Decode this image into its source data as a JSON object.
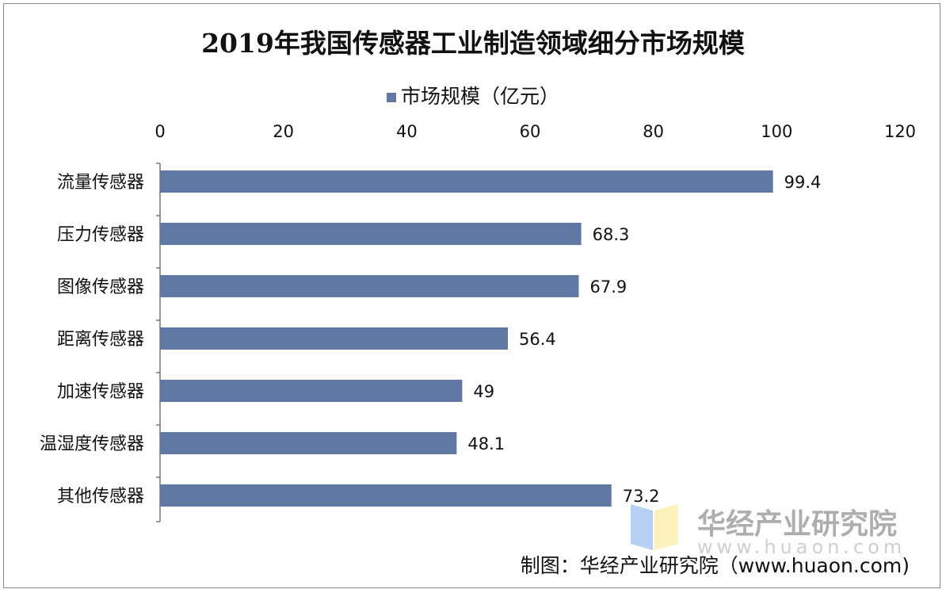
{
  "chart_data": {
    "type": "bar",
    "orientation": "horizontal",
    "title": "2019年我国传感器工业制造领域细分市场规模",
    "categories": [
      "流量传感器",
      "压力传感器",
      "图像传感器",
      "距离传感器",
      "加速传感器",
      "温湿度传感器",
      "其他传感器"
    ],
    "series": [
      {
        "name": "市场规模（亿元）",
        "values": [
          99.4,
          68.3,
          67.9,
          56.4,
          49,
          48.1,
          73.2
        ],
        "color": "#6078a4"
      }
    ],
    "data_labels": [
      "99.4",
      "68.3",
      "67.9",
      "56.4",
      "49",
      "48.1",
      "73.2"
    ],
    "xlim": [
      0,
      120
    ],
    "xticks": [
      "0",
      "20",
      "40",
      "60",
      "80",
      "100",
      "120"
    ],
    "xaxis_position": "top",
    "grid": false,
    "legend_position": "top"
  },
  "watermark": {
    "name": "华经产业研究院",
    "url": "www.huaon.com"
  },
  "source": "制图：华经产业研究院（www.huaon.com)"
}
